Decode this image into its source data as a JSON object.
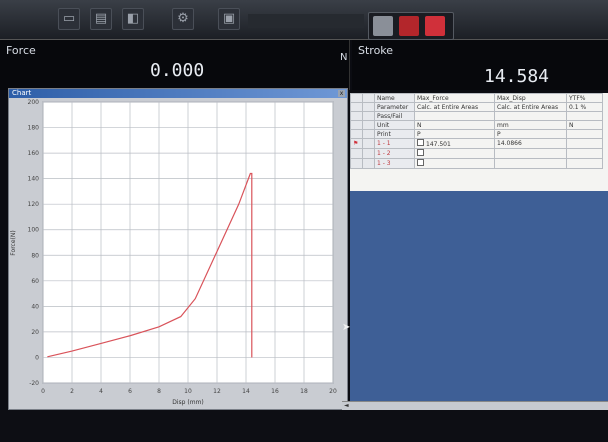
{
  "toolbar": {
    "status_text": "",
    "icons": [
      "new-icon",
      "open-icon",
      "save-icon",
      "settings-icon",
      "print-icon",
      "start-icon",
      "stop-icon",
      "return-icon"
    ],
    "colors": {
      "start": "#8a8f98",
      "stop": "#b3262b",
      "return": "#d0303a"
    }
  },
  "force": {
    "label": "Force",
    "unit": "N",
    "value": "0.000"
  },
  "stroke": {
    "label": "Stroke",
    "unit": "",
    "value": "14.584"
  },
  "chart_window": {
    "title": "Chart",
    "close": "x"
  },
  "chart_data": {
    "type": "line",
    "title": "",
    "xlabel": "Disp (mm)",
    "ylabel": "Force(N)",
    "xlim": [
      0,
      20
    ],
    "ylim": [
      -20,
      200
    ],
    "xticks": [
      0,
      2,
      4,
      6,
      8,
      10,
      12,
      14,
      16,
      18,
      20
    ],
    "yticks": [
      -20,
      0,
      20,
      40,
      60,
      80,
      100,
      120,
      140,
      160,
      180,
      200
    ],
    "grid": true,
    "series": [
      {
        "name": "",
        "color": "#d9535a",
        "x": [
          0.3,
          2,
          4,
          6,
          8,
          9.5,
          10.5,
          12,
          13.5,
          14.3,
          14.4,
          14.4
        ],
        "y": [
          0.5,
          5,
          11,
          17,
          24,
          32,
          46,
          83,
          120,
          144,
          144,
          0
        ]
      }
    ]
  },
  "grid": {
    "header_rows": [
      {
        "label": "Name",
        "v1": "Max_Force",
        "v2": "Max_Disp",
        "v3": "YTF%"
      },
      {
        "label": "Parameter",
        "v1": "Calc. at Entire Areas",
        "v2": "Calc. at Entire Areas",
        "v3": "0.1 %"
      },
      {
        "label": "Pass/Fail",
        "v1": "",
        "v2": "",
        "v3": ""
      },
      {
        "label": "Unit",
        "v1": "N",
        "v2": "mm",
        "v3": "N"
      },
      {
        "label": "Print",
        "v1": "P",
        "v2": "P",
        "v3": ""
      }
    ],
    "data_rows": [
      {
        "label": "1 - 1",
        "v1": "147.501",
        "v2": "14.0866",
        "v3": ""
      },
      {
        "label": "1 - 2",
        "v1": "",
        "v2": "",
        "v3": ""
      },
      {
        "label": "1 - 3",
        "v1": "",
        "v2": "",
        "v3": ""
      }
    ]
  },
  "scroll": {
    "left_arrow": "◄"
  }
}
